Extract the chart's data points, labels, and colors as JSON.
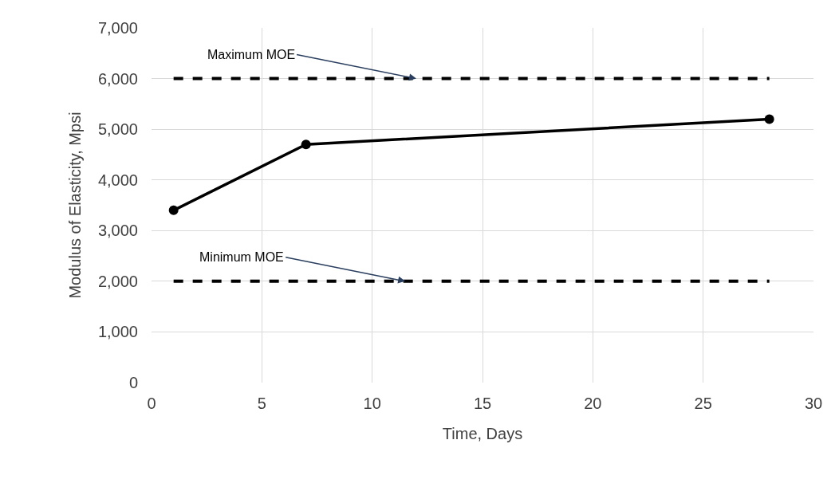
{
  "chart_data": {
    "type": "line",
    "xlabel": "Time, Days",
    "ylabel": "Modulus of Elasticity, Mpsi",
    "series": [
      {
        "color": "#000000",
        "x": [
          1,
          7,
          28
        ],
        "values": [
          3400,
          4700,
          5200
        ],
        "marker": "circle",
        "line_style": "solid"
      },
      {
        "color": "#000000",
        "x": [
          1,
          28
        ],
        "values": [
          6000,
          6000
        ],
        "marker": "none",
        "line_style": "dashed"
      },
      {
        "color": "#000000",
        "x": [
          1,
          28
        ],
        "values": [
          2000,
          2000
        ],
        "marker": "none",
        "line_style": "dashed"
      }
    ],
    "annotations": [
      {
        "text": "Maximum MOE",
        "x": 12,
        "y": 6000
      },
      {
        "text": "Minimum MOE",
        "x": 11.5,
        "y": 2000
      }
    ],
    "xlim": [
      0,
      30
    ],
    "xticks": [
      0,
      5,
      10,
      15,
      20,
      25,
      30
    ],
    "ylim": [
      0,
      7000
    ],
    "yticks": [
      {
        "value": 0,
        "label": "0"
      },
      {
        "value": 1000,
        "label": "1,000"
      },
      {
        "value": 2000,
        "label": "2,000"
      },
      {
        "value": 3000,
        "label": "3,000"
      },
      {
        "value": 4000,
        "label": "4,000"
      },
      {
        "value": 5000,
        "label": "5,000"
      },
      {
        "value": 6000,
        "label": "6,000"
      },
      {
        "value": 7000,
        "label": "7,000"
      }
    ],
    "grid": true
  }
}
